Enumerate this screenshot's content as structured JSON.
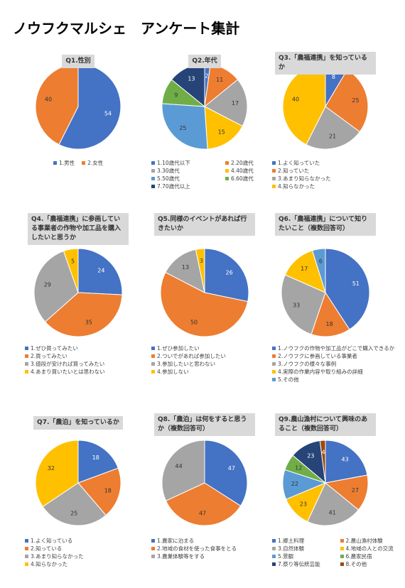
{
  "page_title": "ノウフクマルシェ　アンケート集計",
  "chart_data": [
    {
      "type": "pie",
      "title": "Q1.性別",
      "categories": [
        "1.男性",
        "2.女性"
      ],
      "values": [
        54,
        40
      ],
      "colors": [
        "#4472c4",
        "#ed7d31"
      ]
    },
    {
      "type": "pie",
      "title": "Q2.年代",
      "categories": [
        "1.10歳代以下",
        "2.20歳代",
        "3.30歳代",
        "4.40歳代",
        "5.50歳代",
        "6.60歳代",
        "7.70歳代以上"
      ],
      "values": [
        2,
        11,
        17,
        15,
        25,
        9,
        13
      ],
      "colors": [
        "#4472c4",
        "#ed7d31",
        "#a5a5a5",
        "#ffc000",
        "#5b9bd5",
        "#70ad47",
        "#264478"
      ]
    },
    {
      "type": "pie",
      "title": "Q3.「農福連携」を知っているか",
      "categories": [
        "1.よく知っていた",
        "2.知っていた",
        "3.あまり知らなかった",
        "4.知らなかった"
      ],
      "values": [
        8,
        25,
        21,
        40
      ],
      "colors": [
        "#4472c4",
        "#ed7d31",
        "#a5a5a5",
        "#ffc000"
      ]
    },
    {
      "type": "pie",
      "title": "Q4.「農福連携」に参画している事業者の作物や加工品を購入したいと思うか",
      "categories": [
        "1.ぜひ買ってみたい",
        "2.買ってみたい",
        "3.値段が安ければ買ってみたい",
        "4.あまり買いたいとは思わない"
      ],
      "values": [
        24,
        35,
        29,
        5
      ],
      "colors": [
        "#4472c4",
        "#ed7d31",
        "#a5a5a5",
        "#ffc000"
      ]
    },
    {
      "type": "pie",
      "title": "Q5.同様のイベントがあれば行きたいか",
      "categories": [
        "1.ぜひ参加したい",
        "2.ついでがあれば参加したい",
        "3.参加したいと思わない",
        "4.参加しない"
      ],
      "values": [
        26,
        50,
        13,
        3
      ],
      "colors": [
        "#4472c4",
        "#ed7d31",
        "#a5a5a5",
        "#ffc000"
      ]
    },
    {
      "type": "pie",
      "title": "Q6.「農福連携」について知りたいこと（複数回答可）",
      "categories": [
        "1.ノウフクの作物や加工品がどこで購入できるか",
        "2.ノウフクに参画している事業者",
        "3.ノウフクの様々な事例",
        "4.実際の作業内容や取り組みの詳細",
        "5.その他"
      ],
      "values": [
        51,
        18,
        33,
        17,
        6
      ],
      "colors": [
        "#4472c4",
        "#ed7d31",
        "#a5a5a5",
        "#ffc000",
        "#5b9bd5"
      ]
    },
    {
      "type": "pie",
      "title": "Q7.「農泊」を知っているか",
      "categories": [
        "1.よく知っている",
        "2.知っている",
        "3.あまり知らなかった",
        "4.知らなかった"
      ],
      "values": [
        18,
        18,
        25,
        32
      ],
      "colors": [
        "#4472c4",
        "#ed7d31",
        "#a5a5a5",
        "#ffc000"
      ]
    },
    {
      "type": "pie",
      "title": "Q8.「農泊」は何をすると思うか（複数回答可）",
      "categories": [
        "1.農家に泊まる",
        "2.地域の食材を使った食事をとる",
        "3.農業体験等をする"
      ],
      "values": [
        47,
        47,
        44
      ],
      "colors": [
        "#4472c4",
        "#ed7d31",
        "#a5a5a5"
      ]
    },
    {
      "type": "pie",
      "title": "Q9.農山漁村について興味のあること（複数回答可）",
      "categories": [
        "1.郷土料理",
        "2.農山漁村体験",
        "3.自然体験",
        "4.地域の人との交流",
        "5.景観",
        "6.農家民宿",
        "7.祭り等伝統芸能",
        "8.その他"
      ],
      "values": [
        43,
        27,
        41,
        23,
        22,
        12,
        23,
        4
      ],
      "colors": [
        "#4472c4",
        "#ed7d31",
        "#a5a5a5",
        "#ffc000",
        "#5b9bd5",
        "#70ad47",
        "#264478",
        "#9e480e"
      ]
    }
  ]
}
